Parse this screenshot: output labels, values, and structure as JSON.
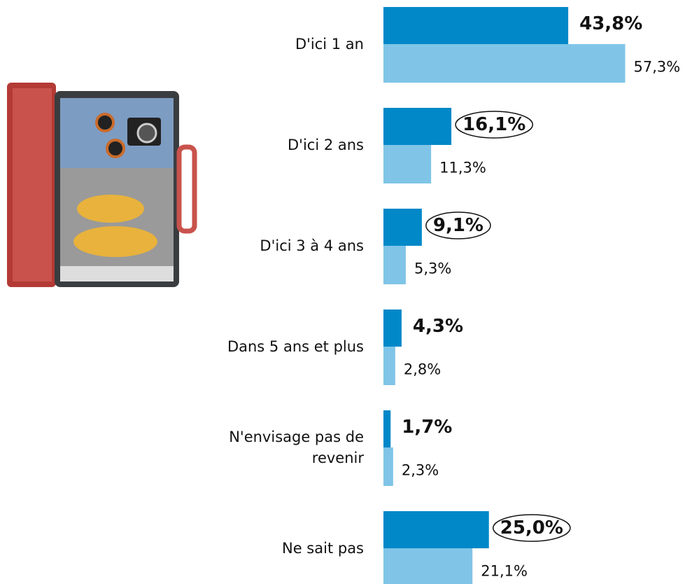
{
  "chart_data": {
    "type": "bar",
    "orientation": "horizontal",
    "categories": [
      "D'ici 1 an",
      "D'ici 2 ans",
      "D'ici 3 à 4 ans",
      "Dans 5 ans et plus",
      "N'envisage pas de revenir",
      "Ne sait pas"
    ],
    "series": [
      {
        "color": "#0088c8",
        "values": [
          43.8,
          16.1,
          9.1,
          4.3,
          1.7,
          25.0
        ],
        "value_labels": [
          "43,8%",
          "16,1%",
          "9,1%",
          "4,3%",
          "1,7%",
          "25,0%"
        ],
        "circled": [
          false,
          true,
          true,
          false,
          false,
          true
        ]
      },
      {
        "color": "#80c5e7",
        "values": [
          57.3,
          11.3,
          5.3,
          2.8,
          2.3,
          21.1
        ],
        "value_labels": [
          "57,3%",
          "11,3%",
          "5,3%",
          "2,8%",
          "2,3%",
          "21,1%"
        ]
      }
    ]
  }
}
